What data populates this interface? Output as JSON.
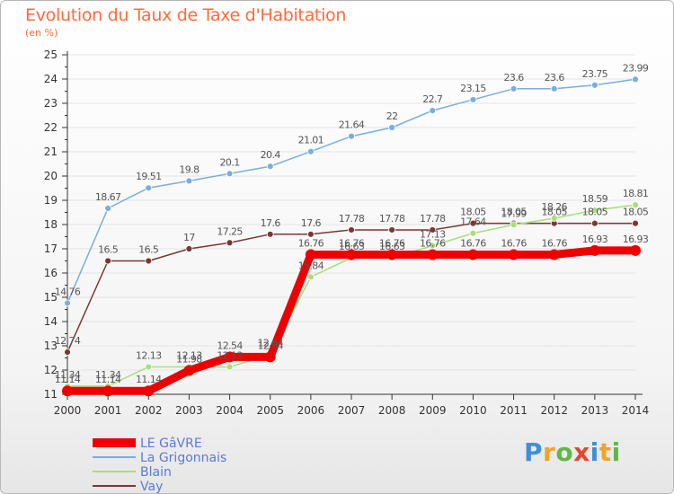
{
  "header": {
    "title": "Evolution du Taux de Taxe d'Habitation",
    "unit": "(en %)"
  },
  "logo": {
    "text": "Proxiti",
    "letter_colors": [
      "#3f8fd8",
      "#f1a32a",
      "#5fb845",
      "#e8452f",
      "#3f8fd8",
      "#f1a32a",
      "#5fb845"
    ]
  },
  "colors": {
    "axis": "#333333",
    "grid": "#e3e3e3",
    "tick_text": "#333333",
    "value_text": "#555555",
    "point_outline": "#ffffff"
  },
  "chart_data": {
    "type": "line",
    "title": "Evolution du Taux de Taxe d'Habitation",
    "ylabel": "(en %)",
    "xlabel": "",
    "x": [
      "2000",
      "2001",
      "2002",
      "2003",
      "2004",
      "2005",
      "2006",
      "2007",
      "2008",
      "2009",
      "2010",
      "2011",
      "2012",
      "2013",
      "2014"
    ],
    "ylim": [
      11,
      25
    ],
    "yticks": [
      11,
      12,
      13,
      14,
      15,
      16,
      17,
      18,
      19,
      20,
      21,
      22,
      23,
      24,
      25
    ],
    "grid": true,
    "legend_position": "bottom-left",
    "series": [
      {
        "name": "LE GâVRE",
        "color": "#ee0000",
        "values": [
          11.14,
          11.14,
          11.14,
          11.98,
          12.54,
          12.54,
          16.76,
          16.76,
          16.76,
          16.76,
          16.76,
          16.76,
          16.76,
          16.93,
          16.93
        ],
        "labels": [
          "11.14",
          "11.14",
          "11.14",
          "11.98",
          "12.54",
          "12.54",
          "16.76",
          "16.76",
          "16.76",
          "16.76",
          "16.76",
          "16.76",
          "16.76",
          "16.93",
          "16.93"
        ]
      },
      {
        "name": "La Grigonnais",
        "color": "#78aee0",
        "values": [
          14.76,
          18.67,
          19.51,
          19.8,
          20.1,
          20.4,
          21.01,
          21.64,
          22,
          22.7,
          23.15,
          23.6,
          23.6,
          23.75,
          23.99
        ],
        "labels": [
          "14.76",
          "18.67",
          "19.51",
          "19.8",
          "20.1",
          "20.4",
          "21.01",
          "21.64",
          "22",
          "22.7",
          "23.15",
          "23.6",
          "23.6",
          "23.75",
          "23.99"
        ]
      },
      {
        "name": "Blain",
        "color": "#a6e07a",
        "values": [
          11.34,
          11.34,
          12.13,
          12.13,
          12.13,
          12.64,
          15.84,
          16.63,
          16.63,
          17.13,
          17.64,
          17.99,
          18.26,
          18.59,
          18.81
        ],
        "labels": [
          "11.34",
          "11.34",
          "12.13",
          "12.13",
          "12.13",
          "12.64",
          "15.84",
          "16.63",
          "16.63",
          "17.13",
          "17.64",
          "17.99",
          "18.26",
          "18.59",
          "18.81"
        ]
      },
      {
        "name": "Vay",
        "color": "#7a3636",
        "values": [
          12.74,
          16.5,
          16.5,
          17,
          17.25,
          17.6,
          17.6,
          17.78,
          17.78,
          17.78,
          18.05,
          18.05,
          18.05,
          18.05,
          18.05
        ],
        "labels": [
          "12.74",
          "16.5",
          "16.5",
          "17",
          "17.25",
          "17.6",
          "17.6",
          "17.78",
          "17.78",
          "17.78",
          "18.05",
          "18.05",
          "18.05",
          "18.05",
          "18.05"
        ]
      }
    ]
  }
}
